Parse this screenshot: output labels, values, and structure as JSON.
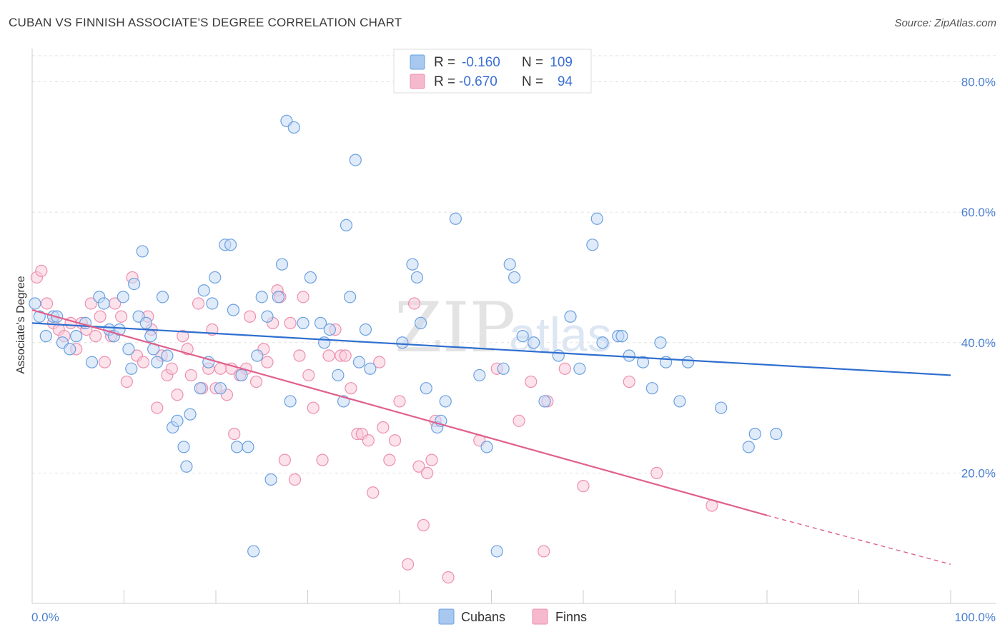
{
  "title": "CUBAN VS FINNISH ASSOCIATE'S DEGREE CORRELATION CHART",
  "source": "Source: ZipAtlas.com",
  "watermark": {
    "zip": "ZIP",
    "atlas": "atlas"
  },
  "legend_top": [
    {
      "r_label": "R =",
      "r_value": "-0.160",
      "n_label": "N =",
      "n_value": "109",
      "color": "#a8c8f0"
    },
    {
      "r_label": "R =",
      "r_value": "-0.670",
      "n_label": "N =",
      "n_value": "94",
      "color": "#f5b8cc"
    }
  ],
  "legend_bottom": [
    {
      "label": "Cubans",
      "color": "#a8c8f0"
    },
    {
      "label": "Finns",
      "color": "#f5b8cc"
    }
  ],
  "chart_data": {
    "type": "scatter",
    "title": "CUBAN VS FINNISH ASSOCIATE'S DEGREE CORRELATION CHART",
    "xlabel": "",
    "ylabel": "Associate's Degree",
    "xlim": [
      0,
      100
    ],
    "ylim": [
      0,
      84
    ],
    "x_tick_labels": [
      "0.0%",
      "100.0%"
    ],
    "y_ticks": [
      20,
      40,
      60,
      80
    ],
    "y_tick_labels": [
      "20.0%",
      "40.0%",
      "60.0%",
      "80.0%"
    ],
    "grid": "horizontal dashed",
    "legend_placement": "top-center and bottom-center",
    "series": [
      {
        "name": "Cubans",
        "color": "#6aa0e0",
        "trend": {
          "x": [
            0,
            100
          ],
          "y": [
            43.0,
            35.0
          ],
          "color": "#2f6fcf"
        },
        "points": [
          [
            0.3,
            46
          ],
          [
            0.8,
            44
          ],
          [
            1.5,
            41
          ],
          [
            2.3,
            44
          ],
          [
            2.7,
            44
          ],
          [
            3.3,
            40
          ],
          [
            4.1,
            39
          ],
          [
            4.8,
            41
          ],
          [
            5.8,
            43
          ],
          [
            6.5,
            37
          ],
          [
            7.3,
            47
          ],
          [
            7.8,
            46
          ],
          [
            8.4,
            42
          ],
          [
            8.9,
            41
          ],
          [
            9.5,
            42
          ],
          [
            9.9,
            47
          ],
          [
            10.5,
            39
          ],
          [
            10.8,
            36
          ],
          [
            11.1,
            49
          ],
          [
            11.6,
            44
          ],
          [
            12.0,
            54
          ],
          [
            12.4,
            43
          ],
          [
            12.9,
            41
          ],
          [
            13.2,
            39
          ],
          [
            13.6,
            37
          ],
          [
            14.2,
            47
          ],
          [
            14.7,
            38
          ],
          [
            15.3,
            27
          ],
          [
            15.8,
            28
          ],
          [
            16.5,
            24
          ],
          [
            16.8,
            21
          ],
          [
            17.2,
            29
          ],
          [
            18.3,
            33
          ],
          [
            18.7,
            48
          ],
          [
            19.2,
            37
          ],
          [
            19.6,
            46
          ],
          [
            19.9,
            50
          ],
          [
            20.5,
            33
          ],
          [
            21.0,
            55
          ],
          [
            21.6,
            55
          ],
          [
            21.9,
            45
          ],
          [
            22.3,
            24
          ],
          [
            22.8,
            35
          ],
          [
            23.5,
            24
          ],
          [
            24.1,
            8
          ],
          [
            24.5,
            38
          ],
          [
            25.0,
            47
          ],
          [
            25.6,
            44
          ],
          [
            26.0,
            19
          ],
          [
            26.8,
            47
          ],
          [
            27.2,
            52
          ],
          [
            27.7,
            74
          ],
          [
            28.1,
            31
          ],
          [
            28.5,
            73
          ],
          [
            29.5,
            43
          ],
          [
            30.3,
            50
          ],
          [
            31.4,
            43
          ],
          [
            31.8,
            40
          ],
          [
            32.4,
            42
          ],
          [
            33.3,
            35
          ],
          [
            33.9,
            31
          ],
          [
            34.2,
            58
          ],
          [
            34.6,
            47
          ],
          [
            35.2,
            68
          ],
          [
            35.6,
            37
          ],
          [
            36.3,
            42
          ],
          [
            36.8,
            36
          ],
          [
            40.3,
            40
          ],
          [
            41.4,
            52
          ],
          [
            41.9,
            50
          ],
          [
            42.3,
            43
          ],
          [
            42.9,
            33
          ],
          [
            44.1,
            27
          ],
          [
            44.5,
            28
          ],
          [
            45.0,
            31
          ],
          [
            46.1,
            59
          ],
          [
            48.7,
            35
          ],
          [
            49.5,
            24
          ],
          [
            50.6,
            8
          ],
          [
            51.3,
            36
          ],
          [
            52.0,
            52
          ],
          [
            52.5,
            50
          ],
          [
            53.4,
            41
          ],
          [
            54.6,
            40
          ],
          [
            55.8,
            31
          ],
          [
            57.3,
            38
          ],
          [
            58.6,
            44
          ],
          [
            59.6,
            36
          ],
          [
            61.0,
            55
          ],
          [
            61.5,
            59
          ],
          [
            62.1,
            40
          ],
          [
            63.8,
            41
          ],
          [
            64.2,
            41
          ],
          [
            65.0,
            38
          ],
          [
            66.5,
            37
          ],
          [
            67.5,
            33
          ],
          [
            68.4,
            40
          ],
          [
            69.0,
            37
          ],
          [
            70.5,
            31
          ],
          [
            71.4,
            37
          ],
          [
            75.0,
            30
          ],
          [
            78.0,
            24
          ],
          [
            78.7,
            26
          ],
          [
            81.0,
            26
          ]
        ]
      },
      {
        "name": "Finns",
        "color": "#f08caa",
        "trend": {
          "x": [
            0,
            80
          ],
          "y": [
            45.0,
            13.5
          ],
          "dashed_to": [
            100,
            6
          ],
          "color": "#e0608c"
        },
        "points": [
          [
            0.5,
            50
          ],
          [
            1.0,
            51
          ],
          [
            1.6,
            46
          ],
          [
            2.3,
            43
          ],
          [
            2.9,
            42
          ],
          [
            3.5,
            41
          ],
          [
            4.2,
            43
          ],
          [
            4.8,
            39
          ],
          [
            5.4,
            43
          ],
          [
            5.9,
            42
          ],
          [
            6.4,
            46
          ],
          [
            6.9,
            41
          ],
          [
            7.4,
            44
          ],
          [
            7.9,
            37
          ],
          [
            8.6,
            41
          ],
          [
            9.0,
            46
          ],
          [
            9.7,
            44
          ],
          [
            10.3,
            34
          ],
          [
            10.9,
            50
          ],
          [
            11.4,
            38
          ],
          [
            12.1,
            37
          ],
          [
            12.6,
            44
          ],
          [
            13.0,
            42
          ],
          [
            13.6,
            30
          ],
          [
            14.1,
            38
          ],
          [
            14.7,
            35
          ],
          [
            15.2,
            36
          ],
          [
            15.8,
            32
          ],
          [
            16.4,
            41
          ],
          [
            16.9,
            39
          ],
          [
            17.3,
            35
          ],
          [
            18.1,
            46
          ],
          [
            18.5,
            33
          ],
          [
            19.2,
            36
          ],
          [
            19.6,
            42
          ],
          [
            20.0,
            33
          ],
          [
            20.5,
            36
          ],
          [
            21.2,
            32
          ],
          [
            21.7,
            36
          ],
          [
            22.0,
            26
          ],
          [
            22.6,
            35
          ],
          [
            23.3,
            36
          ],
          [
            23.7,
            44
          ],
          [
            24.4,
            34
          ],
          [
            25.2,
            39
          ],
          [
            25.6,
            37
          ],
          [
            26.2,
            43
          ],
          [
            26.7,
            48
          ],
          [
            27.0,
            47
          ],
          [
            27.5,
            22
          ],
          [
            28.1,
            43
          ],
          [
            28.6,
            19
          ],
          [
            29.1,
            38
          ],
          [
            29.5,
            47
          ],
          [
            30.1,
            35
          ],
          [
            30.6,
            30
          ],
          [
            31.6,
            22
          ],
          [
            32.3,
            38
          ],
          [
            33.0,
            42
          ],
          [
            33.6,
            38
          ],
          [
            34.1,
            38
          ],
          [
            34.7,
            33
          ],
          [
            35.4,
            26
          ],
          [
            35.9,
            26
          ],
          [
            36.6,
            25
          ],
          [
            37.1,
            17
          ],
          [
            37.8,
            37
          ],
          [
            38.2,
            27
          ],
          [
            38.9,
            22
          ],
          [
            39.5,
            25
          ],
          [
            40.0,
            31
          ],
          [
            40.9,
            6
          ],
          [
            41.6,
            46
          ],
          [
            42.1,
            21
          ],
          [
            42.6,
            12
          ],
          [
            43.0,
            20
          ],
          [
            43.5,
            22
          ],
          [
            43.9,
            28
          ],
          [
            45.3,
            4
          ],
          [
            48.7,
            25
          ],
          [
            50.6,
            36
          ],
          [
            53.0,
            28
          ],
          [
            54.3,
            34
          ],
          [
            55.7,
            8
          ],
          [
            56.1,
            31
          ],
          [
            58.0,
            36
          ],
          [
            60.0,
            18
          ],
          [
            65.0,
            34
          ],
          [
            68.0,
            20
          ],
          [
            74.0,
            15
          ]
        ]
      }
    ]
  }
}
